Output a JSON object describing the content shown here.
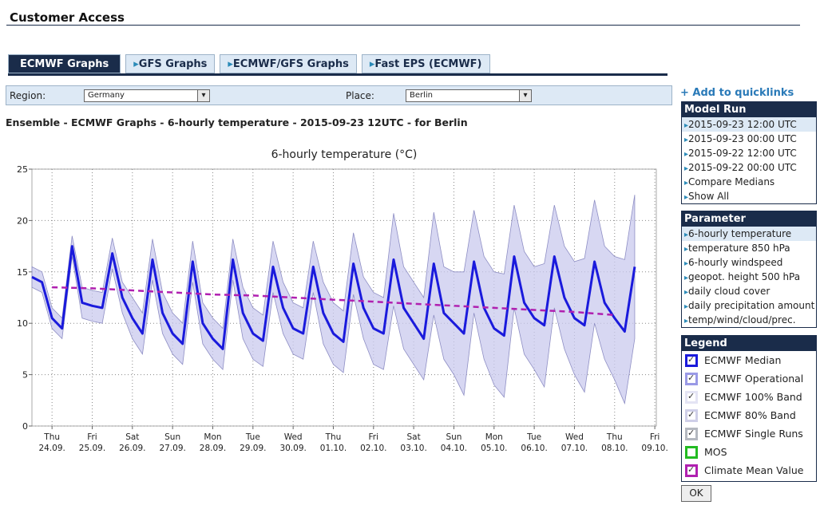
{
  "header": {
    "title": "Customer Access"
  },
  "tabs": {
    "items": [
      "ECMWF Graphs",
      "GFS Graphs",
      "ECMWF/GFS Graphs",
      "Fast EPS (ECMWF)"
    ],
    "active": 0
  },
  "filters": {
    "region_label": "Region:",
    "region": "Germany",
    "place_label": "Place:",
    "place": "Berlin"
  },
  "heading": "Ensemble - ECMWF Graphs - 6-hourly temperature - 2015-09-23 12UTC - for Berlin",
  "sidebar": {
    "quicklinks": "+ Add to quicklinks",
    "model_run": {
      "title": "Model Run",
      "selected": 0,
      "items": [
        "2015-09-23 12:00 UTC",
        "2015-09-23 00:00 UTC",
        "2015-09-22 12:00 UTC",
        "2015-09-22 00:00 UTC",
        "Compare Medians",
        "Show All"
      ]
    },
    "parameter": {
      "title": "Parameter",
      "selected": 0,
      "items": [
        "6-hourly temperature",
        "temperature 850 hPa",
        "6-hourly windspeed",
        "geopot. height 500 hPa",
        "daily cloud cover",
        "daily precipitation amount",
        "temp/wind/cloud/prec."
      ]
    },
    "ok": "OK"
  },
  "chart_data": {
    "type": "line",
    "title": "6-hourly temperature (°C)",
    "ylim": [
      0,
      25
    ],
    "yticks": [
      0,
      5,
      10,
      15,
      20,
      25
    ],
    "xlim": [
      0,
      62.15
    ],
    "xticks": [
      {
        "value": 2,
        "label": "Thu\n24.09."
      },
      {
        "value": 6,
        "label": "Fri\n25.09."
      },
      {
        "value": 10,
        "label": "Sat\n26.09."
      },
      {
        "value": 14,
        "label": "Sun\n27.09."
      },
      {
        "value": 18,
        "label": "Mon\n28.09."
      },
      {
        "value": 22,
        "label": "Tue\n29.09."
      },
      {
        "value": 26,
        "label": "Wed\n30.09."
      },
      {
        "value": 30,
        "label": "Thu\n01.10."
      },
      {
        "value": 34,
        "label": "Fri\n02.10."
      },
      {
        "value": 38,
        "label": "Sat\n03.10."
      },
      {
        "value": 42,
        "label": "Sun\n04.10."
      },
      {
        "value": 46,
        "label": "Mon\n05.10."
      },
      {
        "value": 50,
        "label": "Tue\n06.10."
      },
      {
        "value": 54,
        "label": "Wed\n07.10."
      },
      {
        "value": 58,
        "label": "Thu\n08.10."
      },
      {
        "value": 62,
        "label": "Fri\n09.10."
      }
    ],
    "grid": true,
    "legend": {
      "title": "Legend",
      "items": [
        {
          "name": "ECMWF Median",
          "color": "#1a1adc",
          "checked": true
        },
        {
          "name": "ECMWF Operational",
          "color": "#9a9ae6",
          "checked": true
        },
        {
          "name": "ECMWF 100% Band",
          "color": "#e4e4f4",
          "checked": true
        },
        {
          "name": "ECMWF 80% Band",
          "color": "#cfcfe8",
          "checked": true
        },
        {
          "name": "ECMWF Single Runs",
          "color": "#b4b8c0",
          "checked": true
        },
        {
          "name": "MOS",
          "color": "#22bb22",
          "checked": false
        },
        {
          "name": "Climate Mean Value",
          "color": "#b020b0",
          "checked": true
        }
      ]
    },
    "band": {
      "color": "#c9c9ee",
      "low": [
        13.5,
        13,
        9.5,
        8.5,
        16.5,
        10.5,
        10.2,
        10,
        15.3,
        11,
        8.5,
        7,
        14.2,
        9,
        7,
        6,
        14,
        8,
        6.5,
        5.5,
        14.2,
        8.5,
        6.5,
        5.8,
        13,
        9,
        7,
        6.5,
        13,
        8,
        6,
        5.2,
        12.8,
        8.5,
        6,
        5.5,
        11.7,
        7.5,
        6,
        4.5,
        10.8,
        6.5,
        5,
        3,
        11,
        6.5,
        4,
        2.8,
        11.5,
        7,
        5.5,
        3.8,
        11.5,
        7.5,
        5,
        3.3,
        10,
        6.5,
        4.5,
        2.2,
        8.5
      ],
      "high": [
        15.5,
        15,
        11.5,
        10.5,
        18.5,
        13.5,
        13.2,
        13,
        18.3,
        14,
        12.5,
        11,
        18.2,
        13,
        11,
        10,
        18,
        12,
        10.5,
        9.5,
        18.2,
        13.5,
        11.5,
        10.8,
        18,
        14,
        12,
        11.5,
        18,
        14,
        12,
        11.2,
        18.8,
        14.5,
        13,
        12.5,
        20.7,
        15.5,
        14,
        12.5,
        20.8,
        15.5,
        15,
        15,
        21,
        16.5,
        15,
        14.8,
        21.5,
        17,
        15.5,
        15.8,
        21.5,
        17.5,
        16,
        16.3,
        22,
        17.5,
        16.5,
        16.2,
        22.5
      ]
    },
    "median": {
      "color": "#1a1adc",
      "values": [
        14.5,
        14,
        10.5,
        9.5,
        17.5,
        12,
        11.7,
        11.5,
        16.8,
        12.5,
        10.5,
        9,
        16.2,
        11,
        9,
        8,
        16,
        10,
        8.5,
        7.5,
        16.2,
        11,
        9,
        8.3,
        15.5,
        11.5,
        9.5,
        9,
        15.5,
        11,
        9,
        8.2,
        15.8,
        11.5,
        9.5,
        9,
        16.2,
        11.5,
        10,
        8.5,
        15.8,
        11,
        10,
        9,
        16,
        11.5,
        9.5,
        8.8,
        16.5,
        12,
        10.5,
        9.8,
        16.5,
        12.5,
        10.5,
        9.8,
        16,
        12,
        10.5,
        9.2,
        15.5
      ]
    },
    "climate_mean": {
      "color": "#b020b0",
      "x": [
        2,
        6,
        10,
        14,
        18,
        22,
        26,
        30,
        34,
        38,
        42,
        46,
        50,
        54,
        58
      ],
      "values": [
        13.5,
        13.4,
        13.2,
        13.0,
        12.8,
        12.7,
        12.5,
        12.3,
        12.1,
        11.9,
        11.7,
        11.5,
        11.3,
        11.1,
        10.8
      ]
    }
  }
}
